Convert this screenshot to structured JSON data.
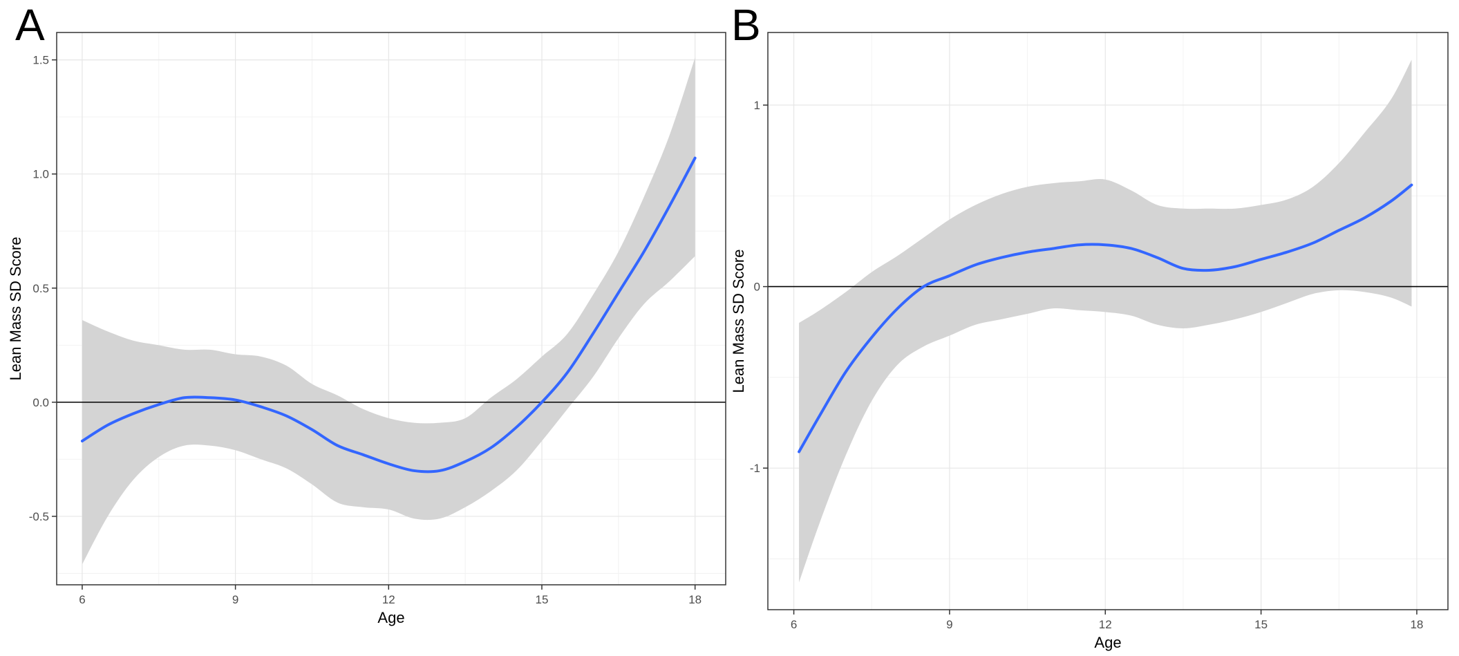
{
  "figure": {
    "panels": [
      "A",
      "B"
    ]
  },
  "chart_data": [
    {
      "type": "line",
      "panel": "A",
      "xlabel": "Age",
      "ylabel": "Lean Mass SD Score",
      "xlim": [
        5.5,
        18.6
      ],
      "ylim": [
        -0.8,
        1.62
      ],
      "xticks": [
        6,
        9,
        12,
        15,
        18
      ],
      "yticks": [
        -0.5,
        0.0,
        0.5,
        1.0,
        1.5
      ],
      "ytick_labels": [
        "-0.5",
        "0.0",
        "0.5",
        "1.0",
        "1.5"
      ],
      "grid": true,
      "reference_line_y": 0,
      "series": [
        {
          "x": [
            6.0,
            6.5,
            7.0,
            7.5,
            8.0,
            8.5,
            9.0,
            9.5,
            10.0,
            10.5,
            11.0,
            11.5,
            12.0,
            12.5,
            13.0,
            13.5,
            14.0,
            14.5,
            15.0,
            15.5,
            16.0,
            16.5,
            17.0,
            17.5,
            18.0
          ],
          "y": [
            -0.17,
            -0.1,
            -0.05,
            -0.01,
            0.02,
            0.02,
            0.01,
            -0.02,
            -0.06,
            -0.12,
            -0.19,
            -0.23,
            -0.27,
            -0.3,
            -0.3,
            -0.26,
            -0.2,
            -0.11,
            0.0,
            0.13,
            0.3,
            0.48,
            0.66,
            0.86,
            1.07
          ],
          "ci_lower": [
            -0.71,
            -0.5,
            -0.34,
            -0.24,
            -0.19,
            -0.19,
            -0.21,
            -0.25,
            -0.29,
            -0.36,
            -0.44,
            -0.46,
            -0.47,
            -0.51,
            -0.51,
            -0.46,
            -0.39,
            -0.3,
            -0.17,
            -0.03,
            0.11,
            0.28,
            0.43,
            0.53,
            0.64
          ],
          "ci_upper": [
            0.36,
            0.31,
            0.27,
            0.25,
            0.23,
            0.23,
            0.21,
            0.2,
            0.16,
            0.08,
            0.03,
            -0.03,
            -0.07,
            -0.09,
            -0.09,
            -0.07,
            0.02,
            0.1,
            0.2,
            0.3,
            0.47,
            0.66,
            0.9,
            1.17,
            1.51
          ]
        }
      ]
    },
    {
      "type": "line",
      "panel": "B",
      "xlabel": "Age",
      "ylabel": "Lean Mass SD Score",
      "xlim": [
        5.5,
        18.6
      ],
      "ylim": [
        -1.78,
        1.4
      ],
      "xticks": [
        6,
        9,
        12,
        15,
        18
      ],
      "yticks": [
        -1,
        0,
        1
      ],
      "ytick_labels": [
        "-1",
        "0",
        "1"
      ],
      "grid": true,
      "reference_line_y": 0,
      "series": [
        {
          "x": [
            6.1,
            6.5,
            7.0,
            7.5,
            8.0,
            8.5,
            9.0,
            9.5,
            10.0,
            10.5,
            11.0,
            11.5,
            12.0,
            12.5,
            13.0,
            13.5,
            14.0,
            14.5,
            15.0,
            15.5,
            16.0,
            16.5,
            17.0,
            17.5,
            17.9
          ],
          "y": [
            -0.91,
            -0.71,
            -0.47,
            -0.28,
            -0.12,
            0.0,
            0.06,
            0.12,
            0.16,
            0.19,
            0.21,
            0.23,
            0.23,
            0.21,
            0.16,
            0.1,
            0.09,
            0.11,
            0.15,
            0.19,
            0.24,
            0.31,
            0.38,
            0.47,
            0.56
          ],
          "ci_lower": [
            -1.63,
            -1.3,
            -0.93,
            -0.63,
            -0.43,
            -0.33,
            -0.27,
            -0.21,
            -0.18,
            -0.15,
            -0.12,
            -0.13,
            -0.14,
            -0.16,
            -0.21,
            -0.23,
            -0.21,
            -0.18,
            -0.14,
            -0.09,
            -0.04,
            -0.02,
            -0.03,
            -0.06,
            -0.11
          ],
          "ci_upper": [
            -0.2,
            -0.13,
            -0.03,
            0.08,
            0.17,
            0.27,
            0.37,
            0.45,
            0.51,
            0.55,
            0.57,
            0.58,
            0.59,
            0.53,
            0.45,
            0.43,
            0.43,
            0.43,
            0.45,
            0.48,
            0.55,
            0.68,
            0.85,
            1.03,
            1.25
          ]
        }
      ]
    }
  ]
}
